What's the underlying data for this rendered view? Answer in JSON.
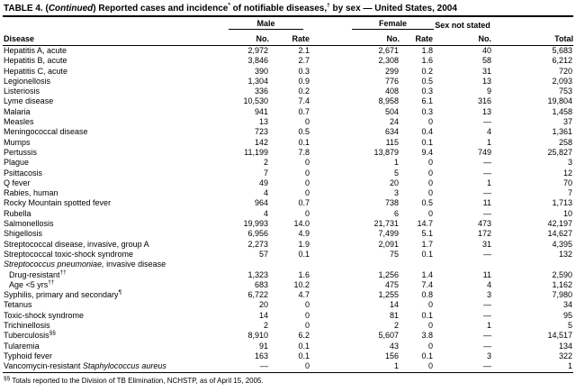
{
  "colors": {
    "background": "#ffffff",
    "text": "#000000",
    "rule": "#000000"
  },
  "title": {
    "parts": [
      [
        "n",
        "TABLE 4. ("
      ],
      [
        "i",
        "Continued"
      ],
      [
        "n",
        ") Reported cases and incidence"
      ],
      [
        "s",
        "*"
      ],
      [
        "n",
        " of notifiable diseases,"
      ],
      [
        "s",
        "†"
      ],
      [
        "n",
        " by sex — United States, 2004"
      ]
    ]
  },
  "table": {
    "group_headers": {
      "male": "Male",
      "female": "Female",
      "sex_not_stated": "Sex not stated"
    },
    "sub_headers": [
      "Disease",
      "No.",
      "Rate",
      "No.",
      "Rate",
      "No.",
      "Total"
    ],
    "rows": [
      {
        "name": [
          [
            "n",
            "Hepatitis A, acute"
          ]
        ],
        "values": [
          "2,972",
          "2.1",
          "2,671",
          "1.8",
          "40",
          "5,683"
        ]
      },
      {
        "name": [
          [
            "n",
            "Hepatitis B, acute"
          ]
        ],
        "values": [
          "3,846",
          "2.7",
          "2,308",
          "1.6",
          "58",
          "6,212"
        ]
      },
      {
        "name": [
          [
            "n",
            "Hepatitis C, acute"
          ]
        ],
        "values": [
          "390",
          "0.3",
          "299",
          "0.2",
          "31",
          "720"
        ]
      },
      {
        "name": [
          [
            "n",
            "Legionellosis"
          ]
        ],
        "values": [
          "1,304",
          "0.9",
          "776",
          "0.5",
          "13",
          "2,093"
        ]
      },
      {
        "name": [
          [
            "n",
            "Listeriosis"
          ]
        ],
        "values": [
          "336",
          "0.2",
          "408",
          "0.3",
          "9",
          "753"
        ]
      },
      {
        "name": [
          [
            "n",
            "Lyme disease"
          ]
        ],
        "values": [
          "10,530",
          "7.4",
          "8,958",
          "6.1",
          "316",
          "19,804"
        ]
      },
      {
        "name": [
          [
            "n",
            "Malaria"
          ]
        ],
        "values": [
          "941",
          "0.7",
          "504",
          "0.3",
          "13",
          "1,458"
        ]
      },
      {
        "name": [
          [
            "n",
            "Measles"
          ]
        ],
        "values": [
          "13",
          "0",
          "24",
          "0",
          "—",
          "37"
        ]
      },
      {
        "name": [
          [
            "n",
            "Meningococcal disease"
          ]
        ],
        "values": [
          "723",
          "0.5",
          "634",
          "0.4",
          "4",
          "1,361"
        ]
      },
      {
        "name": [
          [
            "n",
            "Mumps"
          ]
        ],
        "values": [
          "142",
          "0.1",
          "115",
          "0.1",
          "1",
          "258"
        ]
      },
      {
        "name": [
          [
            "n",
            "Pertussis"
          ]
        ],
        "values": [
          "11,199",
          "7.8",
          "13,879",
          "9.4",
          "749",
          "25,827"
        ]
      },
      {
        "name": [
          [
            "n",
            "Plague"
          ]
        ],
        "values": [
          "2",
          "0",
          "1",
          "0",
          "—",
          "3"
        ]
      },
      {
        "name": [
          [
            "n",
            "Psittacosis"
          ]
        ],
        "values": [
          "7",
          "0",
          "5",
          "0",
          "—",
          "12"
        ]
      },
      {
        "name": [
          [
            "n",
            "Q fever"
          ]
        ],
        "values": [
          "49",
          "0",
          "20",
          "0",
          "1",
          "70"
        ]
      },
      {
        "name": [
          [
            "n",
            "Rabies, human"
          ]
        ],
        "values": [
          "4",
          "0",
          "3",
          "0",
          "—",
          "7"
        ]
      },
      {
        "name": [
          [
            "n",
            "Rocky Mountain spotted fever"
          ]
        ],
        "values": [
          "964",
          "0.7",
          "738",
          "0.5",
          "11",
          "1,713"
        ]
      },
      {
        "name": [
          [
            "n",
            "Rubella"
          ]
        ],
        "values": [
          "4",
          "0",
          "6",
          "0",
          "—",
          "10"
        ]
      },
      {
        "name": [
          [
            "n",
            "Salmonellosis"
          ]
        ],
        "values": [
          "19,993",
          "14.0",
          "21,731",
          "14.7",
          "473",
          "42,197"
        ]
      },
      {
        "name": [
          [
            "n",
            "Shigellosis"
          ]
        ],
        "values": [
          "6,956",
          "4.9",
          "7,499",
          "5.1",
          "172",
          "14,627"
        ]
      },
      {
        "name": [
          [
            "n",
            "Streptococcal disease, invasive, group A"
          ]
        ],
        "values": [
          "2,273",
          "1.9",
          "2,091",
          "1.7",
          "31",
          "4,395"
        ]
      },
      {
        "name": [
          [
            "n",
            "Streptococcal toxic-shock syndrome"
          ]
        ],
        "values": [
          "57",
          "0.1",
          "75",
          "0.1",
          "—",
          "132"
        ]
      },
      {
        "name": [
          [
            "i",
            "Streptococcus pneumoniae,"
          ],
          [
            "n",
            " invasive disease"
          ]
        ],
        "values": [
          "",
          "",
          "",
          "",
          "",
          ""
        ]
      },
      {
        "name": [
          [
            "n",
            "Drug-resistant"
          ],
          [
            "s",
            "††"
          ]
        ],
        "indent": true,
        "values": [
          "1,323",
          "1.6",
          "1,256",
          "1.4",
          "11",
          "2,590"
        ]
      },
      {
        "name": [
          [
            "n",
            "Age <5 yrs"
          ],
          [
            "s",
            "††"
          ]
        ],
        "indent": true,
        "values": [
          "683",
          "10.2",
          "475",
          "7.4",
          "4",
          "1,162"
        ]
      },
      {
        "name": [
          [
            "n",
            "Syphilis, primary and secondary"
          ],
          [
            "s",
            "¶"
          ]
        ],
        "values": [
          "6,722",
          "4.7",
          "1,255",
          "0.8",
          "3",
          "7,980"
        ]
      },
      {
        "name": [
          [
            "n",
            "Tetanus"
          ]
        ],
        "values": [
          "20",
          "0",
          "14",
          "0",
          "—",
          "34"
        ]
      },
      {
        "name": [
          [
            "n",
            "Toxic-shock syndrome"
          ]
        ],
        "values": [
          "14",
          "0",
          "81",
          "0.1",
          "—",
          "95"
        ]
      },
      {
        "name": [
          [
            "n",
            "Trichinellosis"
          ]
        ],
        "values": [
          "2",
          "0",
          "2",
          "0",
          "1",
          "5"
        ]
      },
      {
        "name": [
          [
            "n",
            "Tuberculosis"
          ],
          [
            "s",
            "§§"
          ]
        ],
        "values": [
          "8,910",
          "6.2",
          "5,607",
          "3.8",
          "—",
          "14,517"
        ]
      },
      {
        "name": [
          [
            "n",
            "Tularemia"
          ]
        ],
        "values": [
          "91",
          "0.1",
          "43",
          "0",
          "—",
          "134"
        ]
      },
      {
        "name": [
          [
            "n",
            "Typhoid fever"
          ]
        ],
        "values": [
          "163",
          "0.1",
          "156",
          "0.1",
          "3",
          "322"
        ]
      },
      {
        "name": [
          [
            "n",
            "Vancomycin-resistant "
          ],
          [
            "i",
            "Staphylococcus aureus"
          ]
        ],
        "values": [
          "—",
          "0",
          "1",
          "0",
          "—",
          "1"
        ]
      }
    ]
  },
  "footnote": {
    "parts": [
      [
        "s",
        "§§"
      ],
      [
        "n",
        " Totals reported to the Division of TB Elimination, NCHSTP, as of April 15, 2005."
      ]
    ]
  }
}
